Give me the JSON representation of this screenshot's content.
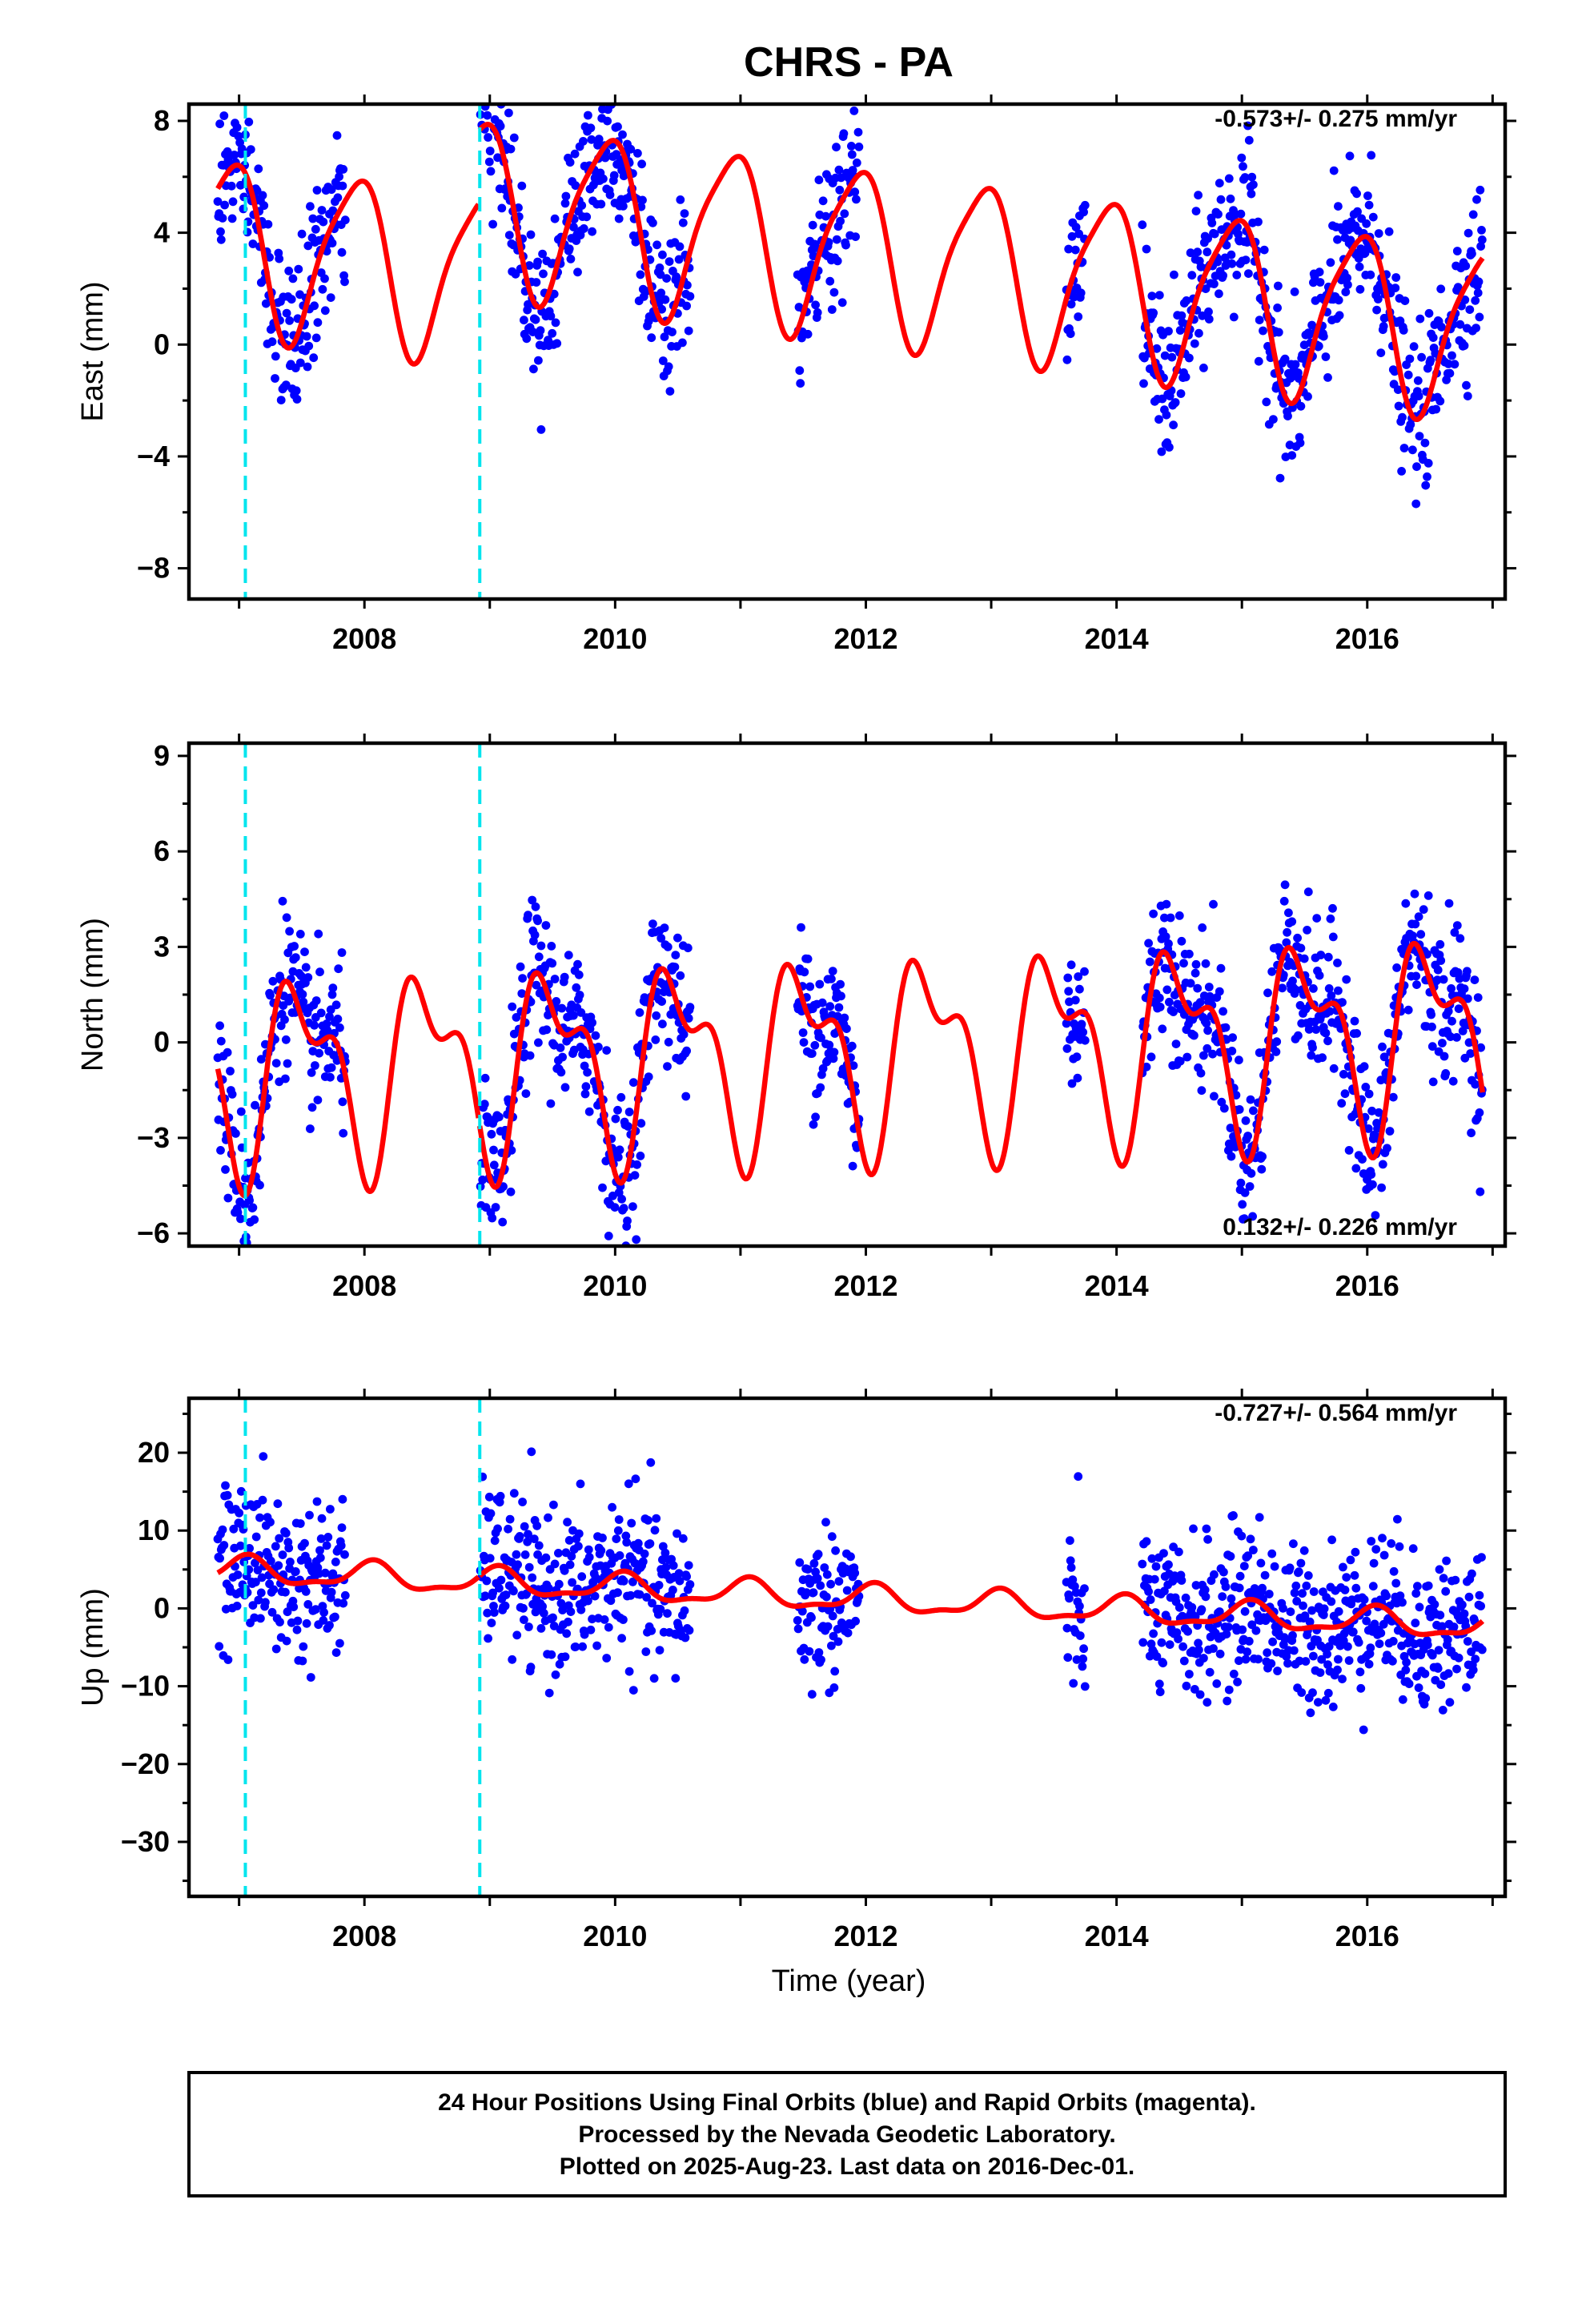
{
  "colors": {
    "final_orbits_points": "#0000ff",
    "model_curve": "#ff0000",
    "offset_lines": "#00e5ee",
    "frame": "#000000"
  },
  "chart_data": {
    "type": "scatter",
    "title": "CHRS - PA",
    "xlabel": "Time (year)",
    "xlim": [
      2006.6,
      2017.1
    ],
    "x_ticks": [
      2008,
      2010,
      2012,
      2014,
      2016
    ],
    "x_tick_labels": [
      "2008",
      "2010",
      "2012",
      "2014",
      "2016"
    ],
    "offset_epochs": [
      2007.05,
      2008.92
    ],
    "data_gaps": [
      [
        2007.85,
        2008.92
      ],
      [
        2010.6,
        2011.45
      ],
      [
        2011.95,
        2013.6
      ],
      [
        2013.75,
        2014.2
      ]
    ],
    "panels": [
      {
        "id": "east",
        "ylabel": "East (mm)",
        "ylim": [
          -9.1,
          8.6
        ],
        "y_ticks": [
          -8,
          -4,
          0,
          4,
          8
        ],
        "y_tick_labels": [
          "−8",
          "−4",
          "0",
          "4",
          "8"
        ],
        "rate_label": "-0.573+/- 0.275 mm/yr",
        "rate_position": "top-right",
        "model": {
          "offset": 0.7,
          "rate": -0.573,
          "annual_amp": 3.0,
          "annual_phase": 2.05,
          "semiannual_amp": 0.6,
          "semiannual_phase": 0.3,
          "step_at_2008_92": 2.6,
          "noise_sd": 1.35
        },
        "series": [
          {
            "name": "Final Orbits",
            "kind": "points",
            "color": "#0000ff"
          },
          {
            "name": "Model",
            "kind": "line",
            "color": "#ff0000"
          }
        ]
      },
      {
        "id": "north",
        "ylabel": "North (mm)",
        "ylim": [
          -6.4,
          9.4
        ],
        "y_ticks": [
          -6,
          -3,
          0,
          3,
          6,
          9
        ],
        "y_tick_labels": [
          "−6",
          "−3",
          "0",
          "3",
          "6",
          "9"
        ],
        "rate_label": "0.132+/- 0.226 mm/yr",
        "rate_position": "bottom-right",
        "model": {
          "offset": -0.3,
          "rate": 0.132,
          "annual_amp": 2.6,
          "annual_phase": 4.7,
          "semiannual_amp": 1.4,
          "semiannual_phase": 3.9,
          "step_at_2008_92": 0.0,
          "noise_sd": 1.2
        },
        "series": [
          {
            "name": "Final Orbits",
            "kind": "points",
            "color": "#0000ff"
          },
          {
            "name": "Model",
            "kind": "line",
            "color": "#ff0000"
          }
        ]
      },
      {
        "id": "up",
        "ylabel": "Up (mm)",
        "ylim": [
          -37,
          27
        ],
        "y_ticks": [
          -30,
          -20,
          -10,
          0,
          10,
          20
        ],
        "y_tick_labels": [
          "−30",
          "−20",
          "−10",
          "0",
          "10",
          "20"
        ],
        "rate_label": "-0.727+/- 0.564 mm/yr",
        "rate_position": "top-right",
        "model": {
          "offset": 1.2,
          "rate": -0.727,
          "annual_amp": 1.6,
          "annual_phase": 1.2,
          "semiannual_amp": 0.6,
          "semiannual_phase": 0.5,
          "step_at_2008_92": 0.0,
          "noise_sd": 5.0
        },
        "series": [
          {
            "name": "Final Orbits",
            "kind": "points",
            "color": "#0000ff"
          },
          {
            "name": "Model",
            "kind": "line",
            "color": "#ff0000"
          }
        ]
      }
    ]
  },
  "footer": {
    "line1": "24 Hour Positions Using Final Orbits (blue) and Rapid Orbits (magenta).",
    "line2": "Processed by the Nevada Geodetic Laboratory.",
    "line3": "Plotted on 2025-Aug-23. Last data on 2016-Dec-01."
  }
}
